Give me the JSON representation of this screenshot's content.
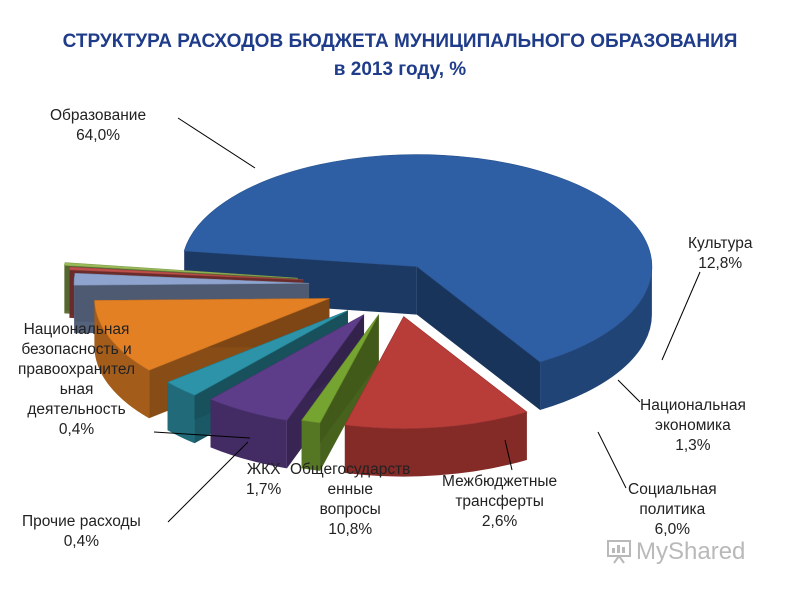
{
  "chart_data": {
    "type": "pie",
    "title": "СТРУКТУРА РАСХОДОВ БЮДЖЕТА МУНИЦИПАЛЬНОГО ОБРАЗОВАНИЯ",
    "subtitle": "в 2013 году, %",
    "slices": [
      {
        "label": "Образование",
        "value": 64.0,
        "display": "64,0%",
        "color": "#2e5fa5"
      },
      {
        "label": "Культура",
        "value": 12.8,
        "display": "12,8%",
        "color": "#b83c38"
      },
      {
        "label": "Национальная экономика",
        "value": 1.3,
        "display": "1,3%",
        "color": "#76a430"
      },
      {
        "label": "Социальная политика",
        "value": 6.0,
        "display": "6,0%",
        "color": "#5d3d8a"
      },
      {
        "label": "Межбюджетные трансферты",
        "value": 2.6,
        "display": "2,6%",
        "color": "#2c93a8"
      },
      {
        "label": "Общегосударственные вопросы",
        "value": 10.8,
        "display": "10,8%",
        "color": "#e38024"
      },
      {
        "label": "ЖКХ",
        "value": 1.7,
        "display": "1,7%",
        "color": "#8ea4cf"
      },
      {
        "label": "Прочие расходы",
        "value": 0.4,
        "display": "0,4%",
        "color": "#c0504d"
      },
      {
        "label": "Национальная безопасность и правоохранительная деятельность",
        "value": 0.4,
        "display": "0,4%",
        "color": "#9bbb59"
      }
    ],
    "legend": "none"
  },
  "labels": {
    "education": {
      "lines": [
        "Образование",
        "64,0%"
      ]
    },
    "culture": {
      "lines": [
        "Культура",
        "12,8%"
      ]
    },
    "economy": {
      "lines": [
        "Национальная",
        "экономика",
        "1,3%"
      ]
    },
    "social": {
      "lines": [
        "Социальная",
        "политика",
        "6,0%"
      ]
    },
    "transfers": {
      "lines": [
        "Межбюджетные",
        "трансферты",
        "2,6%"
      ]
    },
    "general": {
      "lines": [
        "Общегосударств",
        "енные",
        "вопросы",
        "10,8%"
      ]
    },
    "housing": {
      "lines": [
        "ЖКХ",
        "1,7%"
      ]
    },
    "other": {
      "lines": [
        "Прочие расходы",
        "0,4%"
      ]
    },
    "security": {
      "lines": [
        "Национальная",
        "безопасность и",
        "правоохранител",
        "ьная",
        "деятельность",
        "0,4%"
      ]
    }
  },
  "watermark": {
    "text": "MyShared"
  }
}
